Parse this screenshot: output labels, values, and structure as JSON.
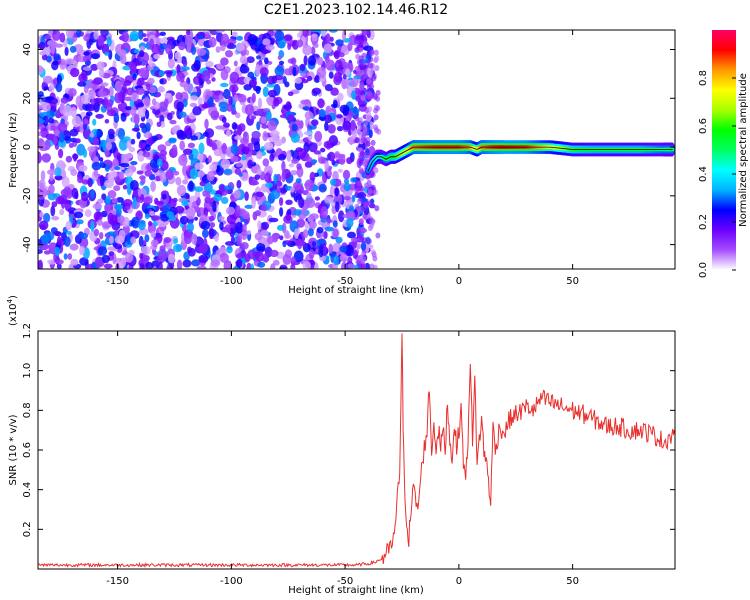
{
  "title": "C2E1.2023.102.14.46.R12",
  "chart_data": [
    {
      "type": "heatmap",
      "xlabel": "Height of straight line (km)",
      "ylabel": "Frequency (Hz)",
      "xlim": [
        -185,
        95
      ],
      "ylim": [
        -50,
        48
      ],
      "xticks": [
        -150,
        -100,
        -50,
        0,
        50
      ],
      "yticks": [
        -40,
        -20,
        0,
        20,
        40
      ],
      "colorbar": {
        "label": "Normalized spectral amplitude",
        "range": [
          0,
          1
        ],
        "ticks": [
          0.0,
          0.2,
          0.4,
          0.6,
          0.8
        ],
        "colors": [
          "#ffffff",
          "#a64dff",
          "#6a00ff",
          "#0000ff",
          "#00b4ff",
          "#00ffff",
          "#00ff60",
          "#00ff00",
          "#aaff00",
          "#ffff00",
          "#ff9900",
          "#ff0000",
          "#ff0066"
        ]
      },
      "ridge": {
        "description_free_values": true,
        "x": [
          -40,
          -38,
          -36,
          -34,
          -32,
          -30,
          -28,
          -26,
          -24,
          -22,
          -20,
          -15,
          -10,
          -5,
          0,
          5,
          8,
          10,
          15,
          20,
          30,
          40,
          50,
          60,
          70,
          80,
          90,
          94
        ],
        "y": [
          -10,
          -6,
          -4,
          -4,
          -5,
          -4,
          -4,
          -3,
          -2,
          -1,
          0,
          0,
          0,
          0,
          0,
          0,
          -1,
          0,
          0,
          0,
          0,
          0,
          -1,
          -1,
          -1,
          -1,
          -1,
          -1
        ],
        "amplitude": [
          0.3,
          0.35,
          0.4,
          0.45,
          0.5,
          0.55,
          0.6,
          0.65,
          0.7,
          0.75,
          0.85,
          0.88,
          0.9,
          0.9,
          0.9,
          0.85,
          0.7,
          0.85,
          0.9,
          0.92,
          0.9,
          0.75,
          0.6,
          0.55,
          0.55,
          0.55,
          0.5,
          0.5
        ]
      }
    },
    {
      "type": "line",
      "xlabel": "Height of straight line (km)",
      "ylabel": "SNR (10 * v/v)",
      "yscale_label": "(x10",
      "yscale_exp": "4",
      "yscale_close": ")",
      "xlim": [
        -185,
        95
      ],
      "ylim": [
        0,
        1.2
      ],
      "xticks": [
        -150,
        -100,
        -50,
        0,
        50
      ],
      "yticks": [
        0.2,
        0.4,
        0.6,
        0.8,
        1.0,
        1.2
      ],
      "ytick_labels": [
        "0.2",
        "0.4",
        "0.6",
        "0.8",
        "1.0",
        "1.2"
      ],
      "color": "#e8302e",
      "series": [
        {
          "x": [
            -185,
            -170,
            -150,
            -130,
            -110,
            -90,
            -70,
            -55,
            -45,
            -38,
            -34,
            -30,
            -28,
            -27,
            -26,
            -25.5,
            -25,
            -24.5,
            -24,
            -23,
            -22,
            -21,
            -20,
            -18,
            -16,
            -14,
            -13,
            -12,
            -11,
            -10,
            -9,
            -8,
            -7,
            -6,
            -5,
            -4,
            -3,
            -2,
            -1,
            0,
            1,
            2,
            3,
            4,
            5,
            6,
            7,
            8,
            9,
            10,
            11,
            12,
            13,
            14,
            15,
            16,
            18,
            20,
            22,
            25,
            28,
            30,
            33,
            36,
            40,
            45,
            50,
            55,
            60,
            65,
            70,
            75,
            80,
            85,
            88,
            90,
            92,
            94,
            95
          ],
          "y": [
            0.02,
            0.02,
            0.02,
            0.02,
            0.02,
            0.02,
            0.02,
            0.02,
            0.02,
            0.03,
            0.05,
            0.1,
            0.2,
            0.35,
            0.5,
            0.85,
            1.18,
            0.7,
            0.45,
            0.25,
            0.15,
            0.3,
            0.4,
            0.3,
            0.55,
            0.7,
            0.92,
            0.6,
            0.72,
            0.62,
            0.7,
            0.62,
            0.7,
            0.6,
            0.85,
            0.65,
            0.55,
            0.75,
            0.6,
            0.7,
            0.8,
            0.55,
            0.45,
            0.65,
            1.08,
            0.62,
            0.95,
            0.55,
            0.65,
            0.75,
            0.6,
            0.55,
            0.45,
            0.33,
            0.72,
            0.6,
            0.72,
            0.68,
            0.75,
            0.78,
            0.8,
            0.82,
            0.8,
            0.86,
            0.84,
            0.82,
            0.8,
            0.78,
            0.75,
            0.72,
            0.72,
            0.7,
            0.7,
            0.68,
            0.66,
            0.64,
            0.66,
            0.68,
            0.68
          ]
        }
      ]
    }
  ]
}
